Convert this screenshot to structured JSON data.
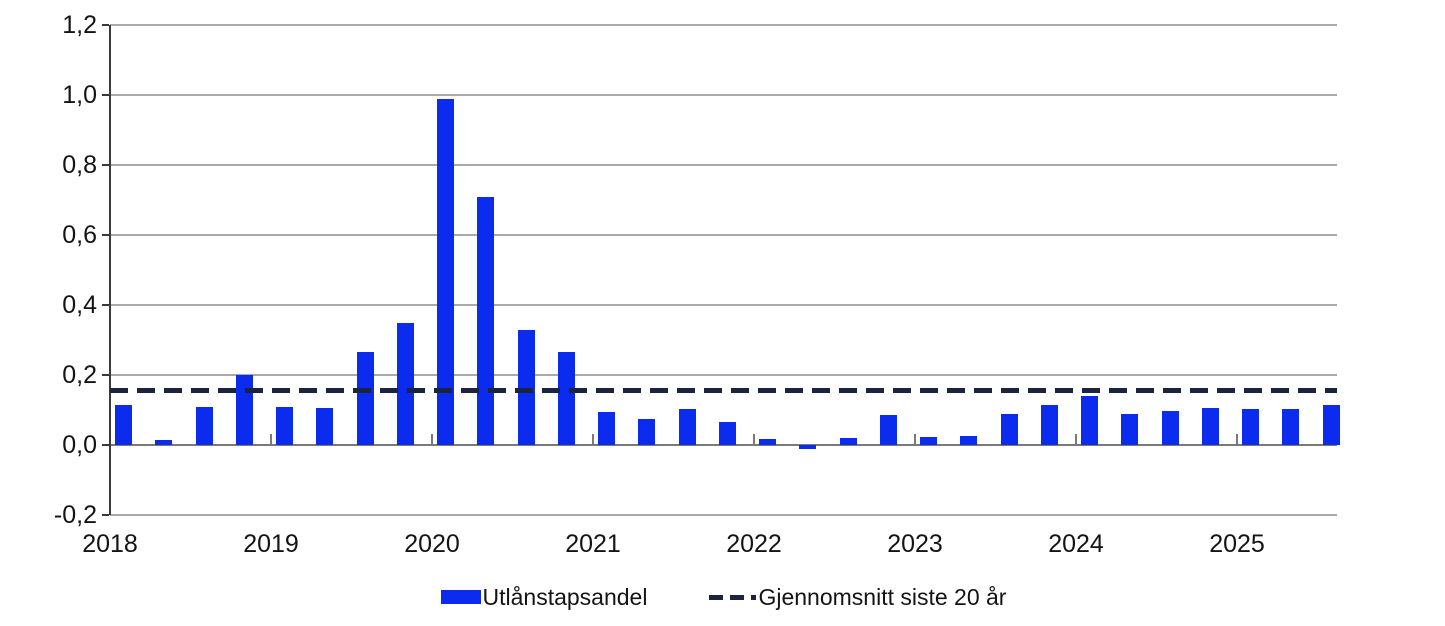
{
  "legend": {
    "bar_label": "Utlånstapsandel",
    "line_label": "Gjennomsnitt siste 20 år"
  },
  "colors": {
    "bar": "#0b2cef",
    "average_line": "#1a2440",
    "gridline": "#a9a9a9",
    "zero_line": "#7a7a7a",
    "axis": "#3a3a3a",
    "tick": "#7a7a7a",
    "text": "#141414"
  },
  "chart_data": {
    "type": "bar",
    "title": "",
    "xlabel": "",
    "ylabel": "",
    "ylim": [
      -0.2,
      1.2
    ],
    "y_tick_step": 0.2,
    "grid": true,
    "legend_position": "bottom",
    "y_tick_labels": [
      "1,2",
      "1,0",
      "0,8",
      "0,6",
      "0,4",
      "0,2",
      "0,0",
      "-0,2"
    ],
    "x_tick_labels": [
      "2018",
      "2019",
      "2020",
      "2021",
      "2022",
      "2023",
      "2024",
      "2025"
    ],
    "x": [
      "2018Q1",
      "2018Q2",
      "2018Q3",
      "2018Q4",
      "2019Q1",
      "2019Q2",
      "2019Q3",
      "2019Q4",
      "2020Q1",
      "2020Q2",
      "2020Q3",
      "2020Q4",
      "2021Q1",
      "2021Q2",
      "2021Q3",
      "2021Q4",
      "2022Q1",
      "2022Q2",
      "2022Q3",
      "2022Q4",
      "2023Q1",
      "2023Q2",
      "2023Q3",
      "2023Q4",
      "2024Q1",
      "2024Q2",
      "2024Q3",
      "2024Q4",
      "2025Q1",
      "2025Q2",
      "2025Q3"
    ],
    "series": [
      {
        "name": "Utlånstapsandel",
        "kind": "bar",
        "values": [
          0.115,
          0.013,
          0.11,
          0.2,
          0.11,
          0.105,
          0.265,
          0.35,
          0.99,
          0.71,
          0.33,
          0.265,
          0.095,
          0.073,
          0.103,
          0.065,
          0.018,
          -0.012,
          0.02,
          0.086,
          0.022,
          0.025,
          0.09,
          0.115,
          0.14,
          0.09,
          0.096,
          0.105,
          0.103,
          0.103,
          0.115
        ]
      },
      {
        "name": "Gjennomsnitt siste 20 år",
        "kind": "dashed-horizontal-line",
        "value": 0.157
      }
    ]
  }
}
